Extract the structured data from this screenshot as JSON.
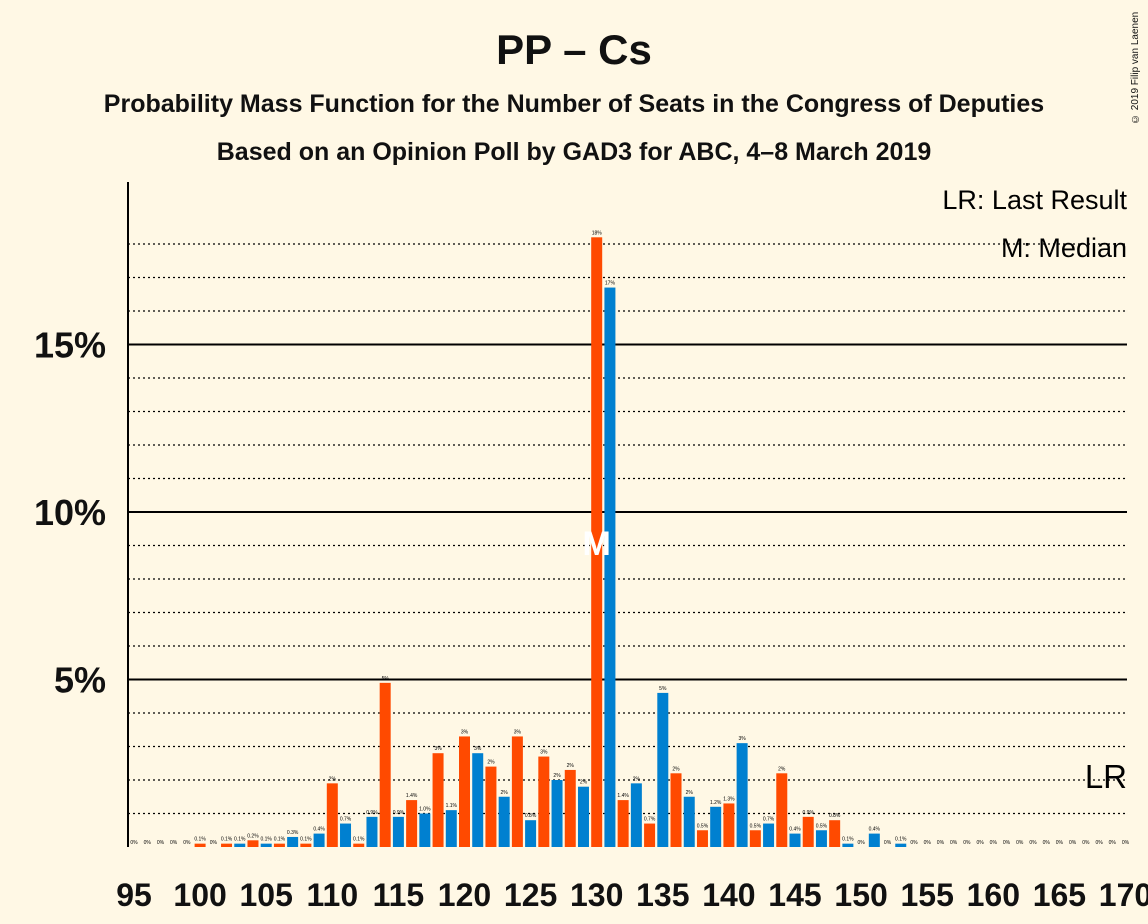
{
  "title": "PP – Cs",
  "subtitle1": "Probability Mass Function for the Number of Seats in the Congress of Deputies",
  "subtitle2": "Based on an Opinion Poll by GAD3 for ABC, 4–8 March 2019",
  "copyright": "© 2019 Filip van Laenen",
  "legend": {
    "lr": "LR: Last Result",
    "m": "M: Median"
  },
  "lr_marker": "LR",
  "median_marker": "M",
  "colors": {
    "blue": "#0080D0",
    "orange": "#FF4A00",
    "background": "#FFF8E5"
  },
  "chart_data": {
    "type": "bar",
    "x": [
      95,
      96,
      97,
      98,
      99,
      100,
      101,
      102,
      103,
      104,
      105,
      106,
      107,
      108,
      109,
      110,
      111,
      112,
      113,
      114,
      115,
      116,
      117,
      118,
      119,
      120,
      121,
      122,
      123,
      124,
      125,
      126,
      127,
      128,
      129,
      130,
      131,
      132,
      133,
      134,
      135,
      136,
      137,
      138,
      139,
      140,
      141,
      142,
      143,
      144,
      145,
      146,
      147,
      148,
      149,
      150,
      151,
      152,
      153,
      154,
      155,
      156,
      157,
      158,
      159,
      160,
      161,
      162,
      163,
      164,
      165,
      166,
      167,
      168,
      169,
      170
    ],
    "values": [
      0,
      0,
      0,
      0,
      0,
      0.1,
      0,
      0.1,
      0.1,
      0.2,
      0.1,
      0.1,
      0.3,
      0.1,
      0.4,
      1.9,
      0.7,
      0.1,
      0.9,
      4.9,
      0.9,
      1.4,
      1.0,
      2.8,
      1.1,
      3.3,
      2.8,
      2.4,
      1.5,
      3.3,
      0.8,
      2.7,
      2.0,
      2.3,
      1.8,
      18.2,
      16.7,
      1.4,
      1.9,
      0.7,
      4.6,
      2.2,
      1.5,
      0.5,
      1.2,
      1.3,
      3.1,
      0.5,
      0.7,
      2.2,
      0.4,
      0.9,
      0.5,
      0.8,
      0.1,
      0,
      0.4,
      0,
      0.1,
      0,
      0,
      0,
      0,
      0,
      0,
      0,
      0,
      0,
      0,
      0,
      0,
      0,
      0,
      0,
      0,
      0
    ],
    "labels": [
      "0%",
      "0%",
      "0%",
      "0%",
      "0%",
      "0.1%",
      "0%",
      "0.1%",
      "0.1%",
      "0.2%",
      "0.1%",
      "0.1%",
      "0.3%",
      "0.1%",
      "0.4%",
      "2%",
      "0.7%",
      "0.1%",
      "0.9%",
      "5%",
      "0.9%",
      "1.4%",
      "1.0%",
      "3%",
      "1.1%",
      "3%",
      "3%",
      "2%",
      "2%",
      "3%",
      "0.8%",
      "3%",
      "2%",
      "2%",
      "2%",
      "18%",
      "17%",
      "1.4%",
      "2%",
      "0.7%",
      "5%",
      "2%",
      "2%",
      "0.5%",
      "1.2%",
      "1.3%",
      "3%",
      "0.5%",
      "0.7%",
      "2%",
      "0.4%",
      "0.9%",
      "0.5%",
      "0.8%",
      "0.1%",
      "0%",
      "0.4%",
      "0%",
      "0.1%",
      "0%",
      "0%",
      "0%",
      "0%",
      "0%",
      "0%",
      "0%",
      "0%",
      "0%",
      "0%",
      "0%",
      "0%",
      "0%",
      "0%",
      "0%",
      "0%",
      "0%"
    ],
    "xticks": [
      95,
      100,
      105,
      110,
      115,
      120,
      125,
      130,
      135,
      140,
      145,
      150,
      155,
      160,
      165,
      170
    ],
    "yticks": [
      {
        "value": 5,
        "label": "5%"
      },
      {
        "value": 10,
        "label": "10%"
      },
      {
        "value": 15,
        "label": "15%"
      }
    ],
    "ylim": [
      0,
      20
    ],
    "median_seat": 130,
    "grid": "dotted every 1%, solid every 5%"
  }
}
